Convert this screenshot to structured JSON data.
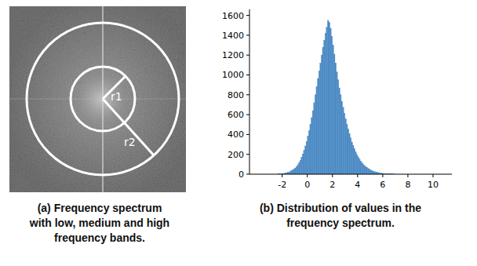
{
  "chart_data": {
    "type": "histogram",
    "caption": "(b) Distribution of values in the frequency spectrum.",
    "bins": [
      -2.5,
      -2.4,
      -2.3,
      -2.2,
      -2.1,
      -2.0,
      -1.9,
      -1.8,
      -1.7,
      -1.6,
      -1.5,
      -1.4,
      -1.3,
      -1.2,
      -1.1,
      -1.0,
      -0.9,
      -0.8,
      -0.7,
      -0.6,
      -0.5,
      -0.4,
      -0.3,
      -0.2,
      -0.1,
      0.0,
      0.1,
      0.2,
      0.3,
      0.4,
      0.5,
      0.6,
      0.7,
      0.8,
      0.9,
      1.0,
      1.1,
      1.2,
      1.3,
      1.4,
      1.5,
      1.6,
      1.7,
      1.8,
      1.9,
      2.0,
      2.1,
      2.2,
      2.3,
      2.4,
      2.5,
      2.6,
      2.7,
      2.8,
      2.9,
      3.0,
      3.1,
      3.2,
      3.3,
      3.4,
      3.5,
      3.6,
      3.7,
      3.8,
      3.9,
      4.0,
      4.1,
      4.2,
      4.3,
      4.4,
      4.5,
      4.6,
      4.7,
      4.8,
      4.9,
      5.0,
      5.1,
      5.2,
      5.3,
      5.4,
      5.5,
      5.6,
      5.7,
      5.8,
      5.9,
      6.0,
      6.1,
      6.2,
      6.3,
      6.4,
      6.5,
      6.6,
      6.7,
      6.8,
      6.9,
      7.0
    ],
    "values": [
      0,
      1,
      2,
      3,
      4,
      6,
      8,
      10,
      13,
      17,
      22,
      28,
      35,
      44,
      52,
      63,
      78,
      95,
      118,
      142,
      172,
      205,
      240,
      285,
      330,
      385,
      440,
      505,
      570,
      640,
      720,
      800,
      880,
      965,
      1040,
      1120,
      1200,
      1280,
      1350,
      1420,
      1480,
      1550,
      1530,
      1470,
      1390,
      1300,
      1210,
      1120,
      1030,
      950,
      870,
      800,
      735,
      675,
      615,
      560,
      505,
      455,
      410,
      365,
      325,
      290,
      255,
      225,
      198,
      175,
      152,
      133,
      116,
      101,
      88,
      76,
      66,
      57,
      49,
      42,
      36,
      31,
      26,
      22,
      19,
      16,
      13,
      11,
      9,
      7,
      6,
      5,
      4,
      3,
      3,
      2,
      2,
      1,
      1
    ],
    "color": "#4a89c4",
    "xlim": [
      -4.6,
      11.5
    ],
    "xticks": [
      -2,
      0,
      2,
      4,
      6,
      8,
      10
    ],
    "ylim": [
      0,
      1660
    ],
    "yticks": [
      0,
      200,
      400,
      600,
      800,
      1000,
      1200,
      1400,
      1600
    ],
    "grid": false
  },
  "spectrum_panel": {
    "caption": "(a) Frequency spectrum with low, medium and high frequency bands.",
    "radius_labels": [
      "r1",
      "r2"
    ]
  }
}
